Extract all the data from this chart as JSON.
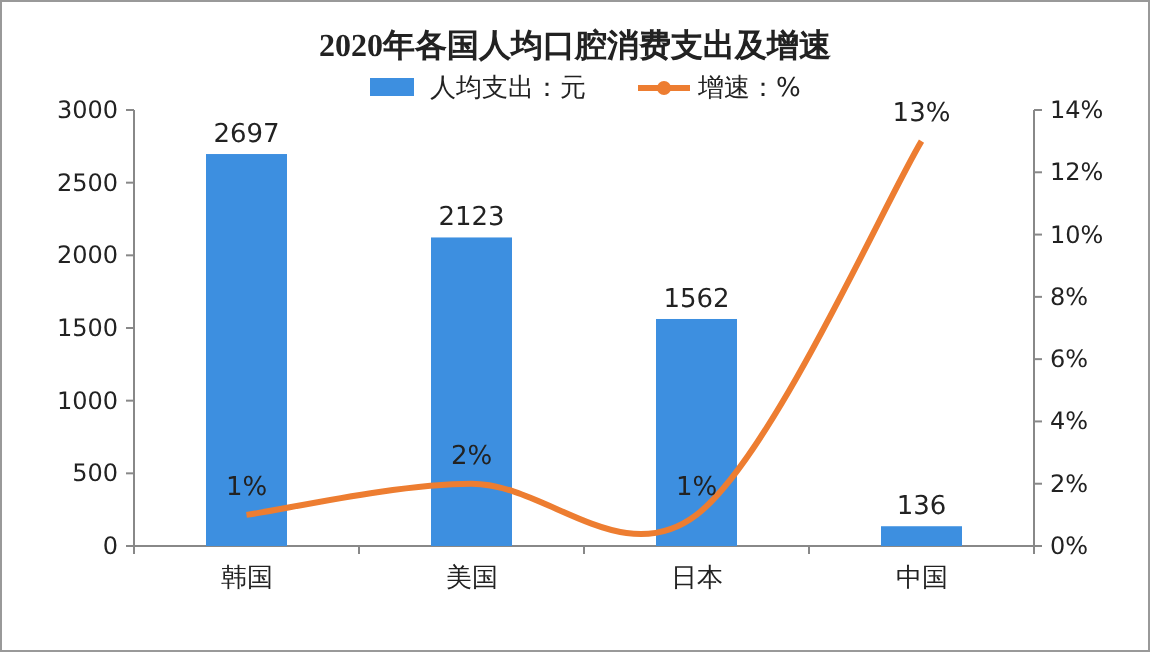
{
  "chart_data": {
    "type": "bar",
    "title": "2020年各国人均口腔消费支出及增速",
    "categories": [
      "韩国",
      "美国",
      "日本",
      "中国"
    ],
    "series": [
      {
        "name": "人均支出：元",
        "color": "#3d8fe0",
        "values": [
          2697,
          2123,
          1562,
          136
        ],
        "data_labels": true
      },
      {
        "name": "增速：%",
        "type": "line",
        "axis": "y2",
        "color": "#ed7d31",
        "values": [
          1,
          2,
          1,
          13
        ],
        "value_labels": [
          "1%",
          "2%",
          "1%",
          "13%"
        ]
      }
    ],
    "ylim": [
      0,
      3000
    ],
    "yticks": [
      0,
      500,
      1000,
      1500,
      2000,
      2500,
      3000
    ],
    "y2lim": [
      0,
      14
    ],
    "y2ticks": [
      {
        "value": 0,
        "label": "0%"
      },
      {
        "value": 2,
        "label": "2%"
      },
      {
        "value": 4,
        "label": "4%"
      },
      {
        "value": 6,
        "label": "6%"
      },
      {
        "value": 8,
        "label": "8%"
      },
      {
        "value": 10,
        "label": "10%"
      },
      {
        "value": 12,
        "label": "12%"
      },
      {
        "value": 14,
        "label": "14%"
      }
    ],
    "grid": false,
    "legend": "top",
    "marker": "none"
  }
}
